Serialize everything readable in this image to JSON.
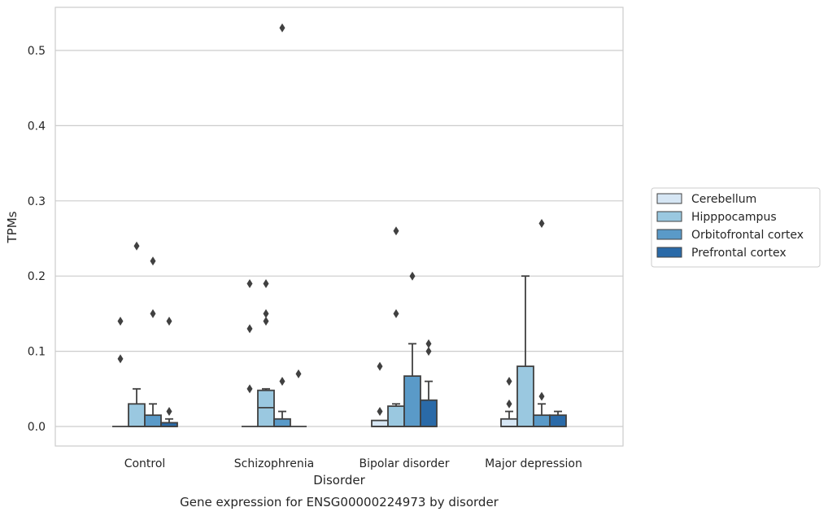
{
  "chart_data": {
    "type": "box",
    "title": "",
    "caption": "Gene expression for ENSG00000224973 by disorder",
    "xlabel": "Disorder",
    "ylabel": "TPMs",
    "ylim": [
      -0.026,
      0.556
    ],
    "yticks": [
      0.0,
      0.1,
      0.2,
      0.3,
      0.4,
      0.5
    ],
    "ytick_labels": [
      "0.0",
      "0.1",
      "0.2",
      "0.3",
      "0.4",
      "0.5"
    ],
    "grid": "horizontal",
    "legend_position": "right",
    "categories": [
      "Control",
      "Schizophrenia",
      "Bipolar disorder",
      "Major depression"
    ],
    "series": [
      {
        "name": "Cerebellum",
        "color": "#d6e6f4",
        "boxes": [
          {
            "whislo": 0,
            "q1": 0,
            "med": 0,
            "q3": 0,
            "whishi": 0,
            "fliers": [
              0.09,
              0.14
            ]
          },
          {
            "whislo": 0,
            "q1": 0,
            "med": 0,
            "q3": 0,
            "whishi": 0,
            "fliers": [
              0.05,
              0.13,
              0.19
            ]
          },
          {
            "whislo": 0,
            "q1": 0,
            "med": 0,
            "q3": 0.008,
            "whishi": 0.008,
            "fliers": [
              0.02,
              0.08
            ]
          },
          {
            "whislo": 0,
            "q1": 0,
            "med": 0,
            "q3": 0.01,
            "whishi": 0.02,
            "fliers": [
              0.03,
              0.06
            ]
          }
        ]
      },
      {
        "name": "Hipppocampus",
        "color": "#9ac8e0",
        "boxes": [
          {
            "whislo": 0,
            "q1": 0,
            "med": 0,
            "q3": 0.03,
            "whishi": 0.05,
            "fliers": [
              0.24
            ]
          },
          {
            "whislo": 0,
            "q1": 0,
            "med": 0.025,
            "q3": 0.048,
            "whishi": 0.05,
            "fliers": [
              0.14,
              0.15,
              0.19
            ]
          },
          {
            "whislo": 0,
            "q1": 0,
            "med": 0,
            "q3": 0.027,
            "whishi": 0.03,
            "fliers": [
              0.15,
              0.26
            ]
          },
          {
            "whislo": 0,
            "q1": 0,
            "med": 0,
            "q3": 0.08,
            "whishi": 0.2,
            "fliers": []
          }
        ]
      },
      {
        "name": "Orbitofrontal cortex",
        "color": "#5a9ac8",
        "boxes": [
          {
            "whislo": 0,
            "q1": 0,
            "med": 0,
            "q3": 0.015,
            "whishi": 0.03,
            "fliers": [
              0.15,
              0.22
            ]
          },
          {
            "whislo": 0,
            "q1": 0,
            "med": 0,
            "q3": 0.01,
            "whishi": 0.02,
            "fliers": [
              0.06,
              0.53
            ]
          },
          {
            "whislo": 0,
            "q1": 0,
            "med": 0,
            "q3": 0.067,
            "whishi": 0.11,
            "fliers": [
              0.2
            ]
          },
          {
            "whislo": 0,
            "q1": 0,
            "med": 0,
            "q3": 0.015,
            "whishi": 0.03,
            "fliers": [
              0.04,
              0.27
            ]
          }
        ]
      },
      {
        "name": "Prefrontal cortex",
        "color": "#2a6aa8",
        "boxes": [
          {
            "whislo": 0,
            "q1": 0,
            "med": 0,
            "q3": 0.005,
            "whishi": 0.01,
            "fliers": [
              0.02,
              0.14
            ]
          },
          {
            "whislo": 0,
            "q1": 0,
            "med": 0,
            "q3": 0,
            "whishi": 0,
            "fliers": [
              0.07
            ]
          },
          {
            "whislo": 0,
            "q1": 0,
            "med": 0,
            "q3": 0.035,
            "whishi": 0.06,
            "fliers": [
              0.1,
              0.11
            ]
          },
          {
            "whislo": 0,
            "q1": 0,
            "med": 0,
            "q3": 0.015,
            "whishi": 0.02,
            "fliers": []
          }
        ]
      }
    ],
    "colors": {
      "grid": "#cccccc",
      "frame": "#cccccc",
      "line": "#404040",
      "text": "#262626"
    }
  }
}
